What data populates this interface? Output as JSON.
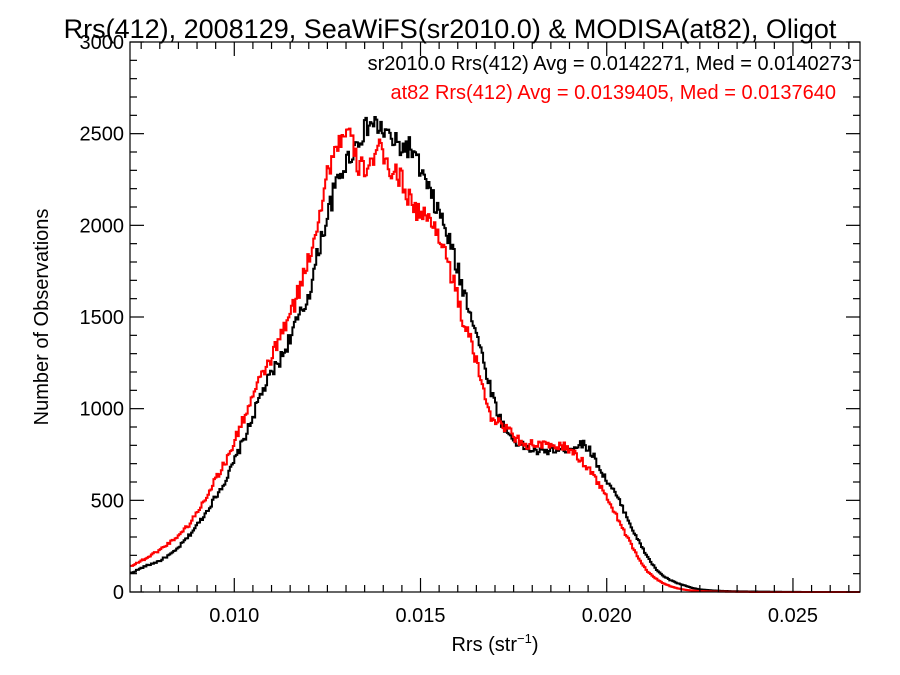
{
  "colors": {
    "series_sr2010": "#000000",
    "series_at82": "#ff0000",
    "axes": "#000000",
    "background": "#ffffff"
  },
  "chart_data": {
    "type": "line",
    "step": true,
    "title": "Rrs(412), 2008129, SeaWiFS(sr2010.0) & MODISA(at82), Oligot",
    "xlabel_main": "Rrs (str",
    "xlabel_sup": "−1",
    "xlabel_end": ")",
    "ylabel": "Number of Observations",
    "xlim": [
      0.0072,
      0.0268
    ],
    "ylim": [
      0,
      3000
    ],
    "xticks": [
      {
        "value": 0.01,
        "label": "0.010"
      },
      {
        "value": 0.015,
        "label": "0.015"
      },
      {
        "value": 0.02,
        "label": "0.020"
      },
      {
        "value": 0.025,
        "label": "0.025"
      }
    ],
    "yticks": [
      {
        "value": 0,
        "label": "0"
      },
      {
        "value": 500,
        "label": "500"
      },
      {
        "value": 1000,
        "label": "1000"
      },
      {
        "value": 1500,
        "label": "1500"
      },
      {
        "value": 2000,
        "label": "2000"
      },
      {
        "value": 2500,
        "label": "2500"
      },
      {
        "value": 3000,
        "label": "3000"
      }
    ],
    "legend": [
      {
        "text": "sr2010.0 Rrs(412) Avg = 0.0142271, Med = 0.0140273",
        "color": "#000000"
      },
      {
        "text": "at82 Rrs(412) Avg = 0.0139405, Med = 0.0137640",
        "color": "#ff0000"
      }
    ],
    "series": [
      {
        "name": "sr2010.0",
        "color": "#000000",
        "points": [
          [
            0.0072,
            100
          ],
          [
            0.0076,
            140
          ],
          [
            0.008,
            170
          ],
          [
            0.0084,
            220
          ],
          [
            0.0088,
            310
          ],
          [
            0.0092,
            420
          ],
          [
            0.0095,
            520
          ],
          [
            0.0098,
            620
          ],
          [
            0.0101,
            760
          ],
          [
            0.0104,
            900
          ],
          [
            0.0107,
            1070
          ],
          [
            0.011,
            1190
          ],
          [
            0.0113,
            1290
          ],
          [
            0.0116,
            1440
          ],
          [
            0.0119,
            1560
          ],
          [
            0.0121,
            1700
          ],
          [
            0.0123,
            1900
          ],
          [
            0.0125,
            2050
          ],
          [
            0.0127,
            2200
          ],
          [
            0.0129,
            2300
          ],
          [
            0.0131,
            2380
          ],
          [
            0.0133,
            2450
          ],
          [
            0.0135,
            2520
          ],
          [
            0.0137,
            2560
          ],
          [
            0.0139,
            2530
          ],
          [
            0.0141,
            2500
          ],
          [
            0.0143,
            2450
          ],
          [
            0.0145,
            2420
          ],
          [
            0.0147,
            2430
          ],
          [
            0.0149,
            2350
          ],
          [
            0.0151,
            2250
          ],
          [
            0.0153,
            2150
          ],
          [
            0.0155,
            2070
          ],
          [
            0.0157,
            1960
          ],
          [
            0.0159,
            1830
          ],
          [
            0.0161,
            1680
          ],
          [
            0.0163,
            1560
          ],
          [
            0.0165,
            1420
          ],
          [
            0.0167,
            1250
          ],
          [
            0.0169,
            1100
          ],
          [
            0.0171,
            960
          ],
          [
            0.0173,
            880
          ],
          [
            0.0175,
            830
          ],
          [
            0.0177,
            800
          ],
          [
            0.0179,
            780
          ],
          [
            0.0181,
            770
          ],
          [
            0.0183,
            760
          ],
          [
            0.0185,
            780
          ],
          [
            0.0187,
            770
          ],
          [
            0.0189,
            780
          ],
          [
            0.0191,
            790
          ],
          [
            0.0193,
            810
          ],
          [
            0.0195,
            790
          ],
          [
            0.0197,
            720
          ],
          [
            0.0199,
            640
          ],
          [
            0.0201,
            580
          ],
          [
            0.0203,
            510
          ],
          [
            0.0205,
            430
          ],
          [
            0.0207,
            340
          ],
          [
            0.0209,
            260
          ],
          [
            0.0211,
            190
          ],
          [
            0.0213,
            130
          ],
          [
            0.0215,
            90
          ],
          [
            0.0217,
            65
          ],
          [
            0.0219,
            48
          ],
          [
            0.0221,
            35
          ],
          [
            0.0223,
            22
          ],
          [
            0.0225,
            14
          ],
          [
            0.0228,
            9
          ],
          [
            0.0231,
            6
          ],
          [
            0.0234,
            4
          ],
          [
            0.0238,
            3
          ],
          [
            0.0242,
            2
          ],
          [
            0.0247,
            1
          ],
          [
            0.0255,
            0
          ],
          [
            0.0268,
            0
          ]
        ]
      },
      {
        "name": "at82",
        "color": "#ff0000",
        "points": [
          [
            0.0072,
            140
          ],
          [
            0.0076,
            180
          ],
          [
            0.008,
            230
          ],
          [
            0.0084,
            290
          ],
          [
            0.0088,
            370
          ],
          [
            0.0092,
            500
          ],
          [
            0.0095,
            620
          ],
          [
            0.0098,
            720
          ],
          [
            0.0101,
            870
          ],
          [
            0.0104,
            1020
          ],
          [
            0.0107,
            1160
          ],
          [
            0.011,
            1280
          ],
          [
            0.0113,
            1420
          ],
          [
            0.0116,
            1560
          ],
          [
            0.0119,
            1750
          ],
          [
            0.0121,
            1900
          ],
          [
            0.0123,
            2080
          ],
          [
            0.0125,
            2280
          ],
          [
            0.0127,
            2420
          ],
          [
            0.0129,
            2480
          ],
          [
            0.0131,
            2500
          ],
          [
            0.0133,
            2330
          ],
          [
            0.0135,
            2310
          ],
          [
            0.0137,
            2360
          ],
          [
            0.0139,
            2410
          ],
          [
            0.0141,
            2330
          ],
          [
            0.0143,
            2290
          ],
          [
            0.0145,
            2250
          ],
          [
            0.0147,
            2150
          ],
          [
            0.0149,
            2080
          ],
          [
            0.0151,
            2050
          ],
          [
            0.0153,
            2010
          ],
          [
            0.0155,
            1960
          ],
          [
            0.0157,
            1830
          ],
          [
            0.0159,
            1680
          ],
          [
            0.0161,
            1510
          ],
          [
            0.0163,
            1400
          ],
          [
            0.0165,
            1250
          ],
          [
            0.0167,
            1100
          ],
          [
            0.0169,
            960
          ],
          [
            0.0171,
            920
          ],
          [
            0.0173,
            900
          ],
          [
            0.0175,
            850
          ],
          [
            0.0177,
            820
          ],
          [
            0.0179,
            800
          ],
          [
            0.0181,
            810
          ],
          [
            0.0183,
            800
          ],
          [
            0.0185,
            790
          ],
          [
            0.0187,
            800
          ],
          [
            0.0189,
            790
          ],
          [
            0.0191,
            760
          ],
          [
            0.0193,
            720
          ],
          [
            0.0195,
            680
          ],
          [
            0.0197,
            620
          ],
          [
            0.0199,
            550
          ],
          [
            0.0201,
            480
          ],
          [
            0.0203,
            400
          ],
          [
            0.0205,
            320
          ],
          [
            0.0207,
            240
          ],
          [
            0.0209,
            170
          ],
          [
            0.0211,
            110
          ],
          [
            0.0213,
            75
          ],
          [
            0.0215,
            50
          ],
          [
            0.0217,
            32
          ],
          [
            0.0219,
            20
          ],
          [
            0.0221,
            12
          ],
          [
            0.0223,
            8
          ],
          [
            0.0225,
            5
          ],
          [
            0.0228,
            3
          ],
          [
            0.0231,
            2
          ],
          [
            0.0235,
            1
          ],
          [
            0.024,
            0
          ],
          [
            0.0268,
            0
          ]
        ]
      }
    ]
  }
}
